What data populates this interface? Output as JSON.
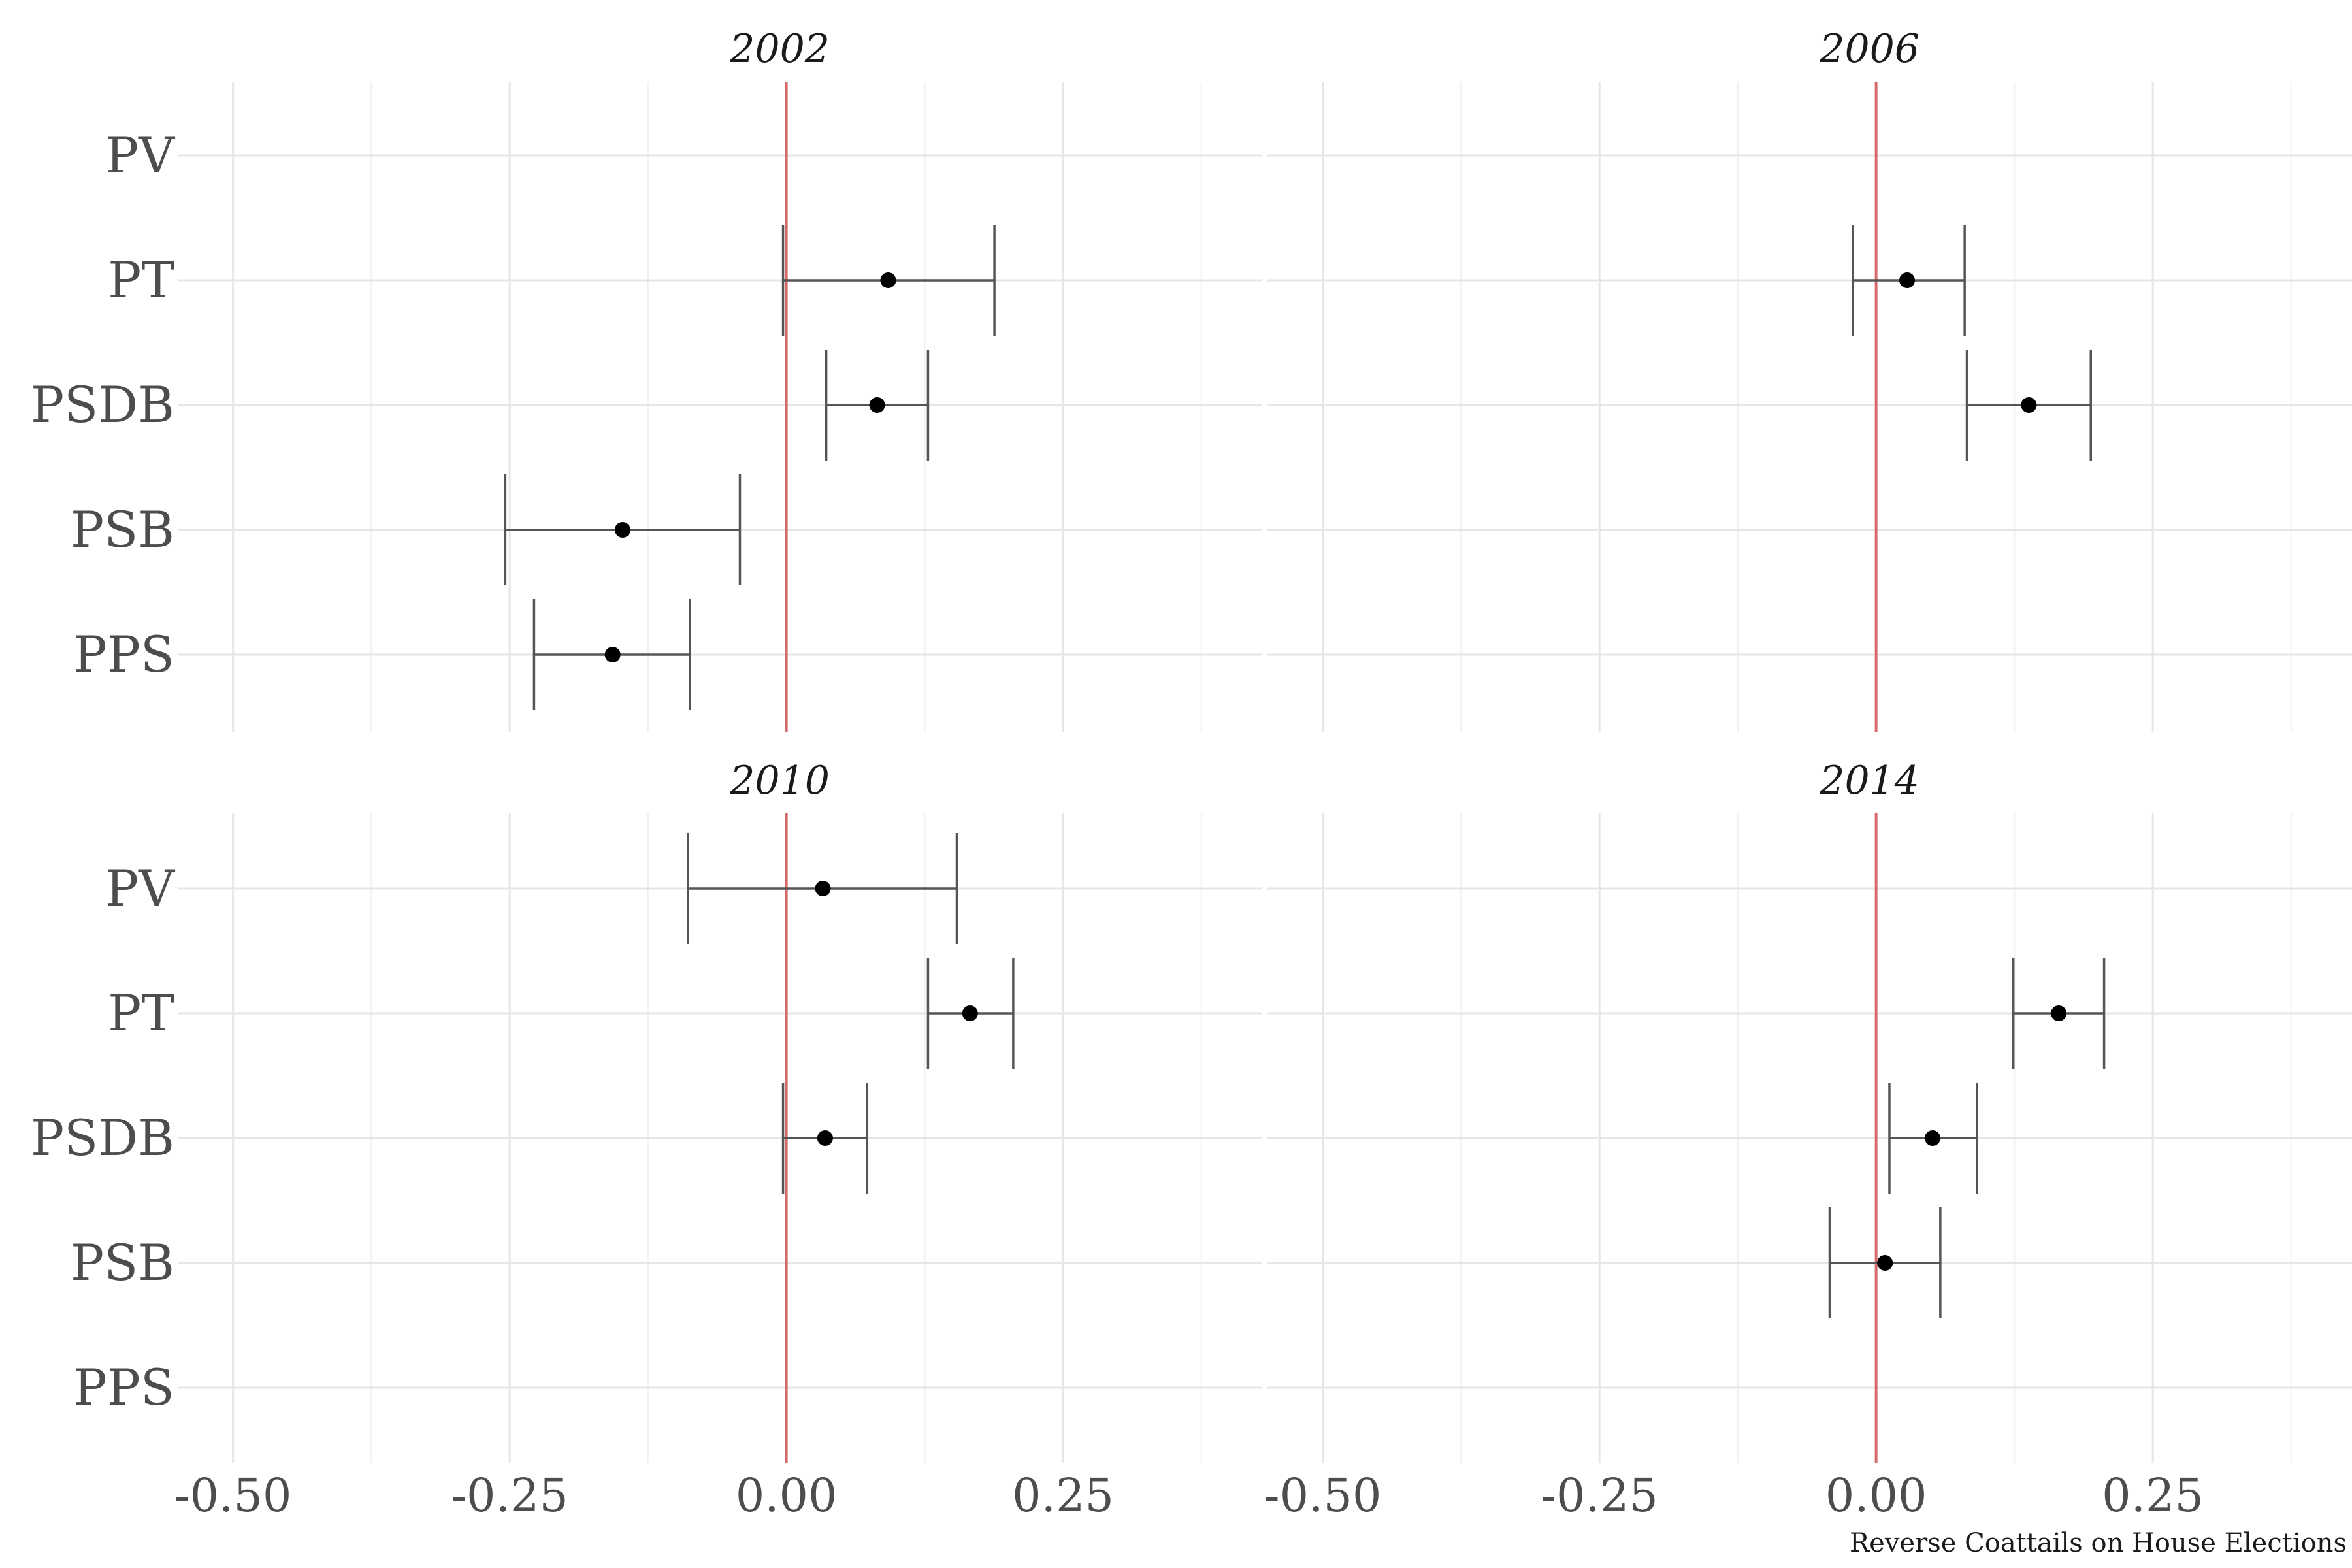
{
  "caption": "Reverse Coattails on House Elections",
  "chart_data": {
    "type": "scatter",
    "subtype": "point-range / coefficient plot with error bars, faceted by year",
    "categories": [
      "PV",
      "PT",
      "PSDB",
      "PSB",
      "PPS"
    ],
    "x_ticks": [
      "-0.50",
      "-0.25",
      "0.00",
      "0.25"
    ],
    "xlim": [
      -0.55,
      0.43
    ],
    "reference_line": {
      "x": 0,
      "color": "#d66a6a"
    },
    "grid": true,
    "facets": [
      {
        "title": "2002",
        "points": [
          {
            "party": "PT",
            "estimate": 0.092,
            "low": -0.003,
            "high": 0.188
          },
          {
            "party": "PSDB",
            "estimate": 0.082,
            "low": 0.036,
            "high": 0.128
          },
          {
            "party": "PSB",
            "estimate": -0.148,
            "low": -0.254,
            "high": -0.042
          },
          {
            "party": "PPS",
            "estimate": -0.157,
            "low": -0.228,
            "high": -0.087
          }
        ]
      },
      {
        "title": "2006",
        "points": [
          {
            "party": "PT",
            "estimate": 0.028,
            "low": -0.021,
            "high": 0.08
          },
          {
            "party": "PSDB",
            "estimate": 0.138,
            "low": 0.082,
            "high": 0.194
          }
        ]
      },
      {
        "title": "2010",
        "points": [
          {
            "party": "PV",
            "estimate": 0.033,
            "low": -0.089,
            "high": 0.154
          },
          {
            "party": "PT",
            "estimate": 0.166,
            "low": 0.128,
            "high": 0.205
          },
          {
            "party": "PSDB",
            "estimate": 0.035,
            "low": -0.003,
            "high": 0.073
          }
        ]
      },
      {
        "title": "2014",
        "points": [
          {
            "party": "PT",
            "estimate": 0.165,
            "low": 0.124,
            "high": 0.206
          },
          {
            "party": "PSDB",
            "estimate": 0.051,
            "low": 0.012,
            "high": 0.091
          },
          {
            "party": "PSB",
            "estimate": 0.008,
            "low": -0.042,
            "high": 0.058
          }
        ]
      }
    ]
  }
}
